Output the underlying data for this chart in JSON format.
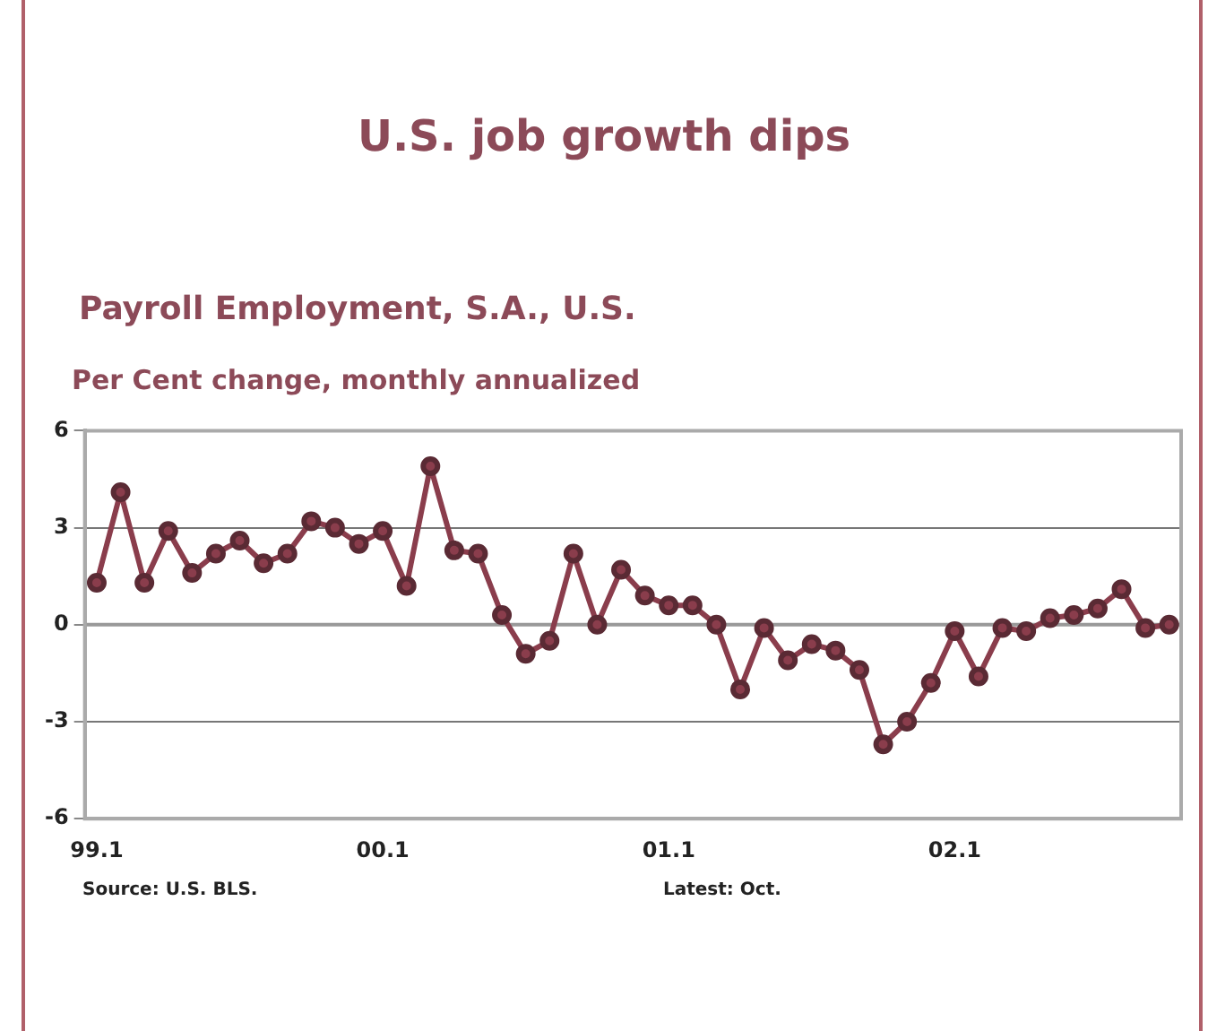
{
  "chart_data": {
    "type": "line",
    "title": "U.S. job growth dips",
    "subtitle": "Payroll Employment, S.A., U.S.",
    "ylabel": "Per Cent change, monthly annualized",
    "categories": [
      "99.1",
      null,
      null,
      null,
      null,
      null,
      null,
      null,
      null,
      null,
      null,
      null,
      "00.1",
      null,
      null,
      null,
      null,
      null,
      null,
      null,
      null,
      null,
      null,
      null,
      "01.1",
      null,
      null,
      null,
      null,
      null,
      null,
      null,
      null,
      null,
      null,
      null,
      "02.1",
      null,
      null,
      null,
      null,
      null,
      null,
      null,
      null,
      null
    ],
    "series": [
      {
        "color": "#8a3d4c",
        "values": [
          1.3,
          4.1,
          1.3,
          2.9,
          1.6,
          2.2,
          2.6,
          1.9,
          2.2,
          3.2,
          3.0,
          2.5,
          2.9,
          1.2,
          4.9,
          2.3,
          2.2,
          0.3,
          -0.9,
          -0.5,
          2.2,
          0.0,
          1.7,
          0.9,
          0.6,
          0.6,
          0.0,
          -2.0,
          -0.1,
          -1.1,
          -0.6,
          -0.8,
          -1.4,
          -3.7,
          -3.0,
          -1.8,
          -0.2,
          -1.6,
          -0.1,
          -0.2,
          0.2,
          0.3,
          0.5,
          1.1,
          -0.1,
          0.0
        ]
      }
    ],
    "ylim": [
      -6,
      6
    ],
    "yticks": [
      -6,
      -3,
      0,
      3,
      6
    ],
    "grid": "y",
    "marker": "circle",
    "line_style": "solid",
    "ref_lines": [
      {
        "axis": "y",
        "value": 0,
        "color": "#999999",
        "line_style": "solid"
      }
    ],
    "annotations": [
      "Source: U.S. BLS.",
      "Latest: Oct."
    ]
  }
}
